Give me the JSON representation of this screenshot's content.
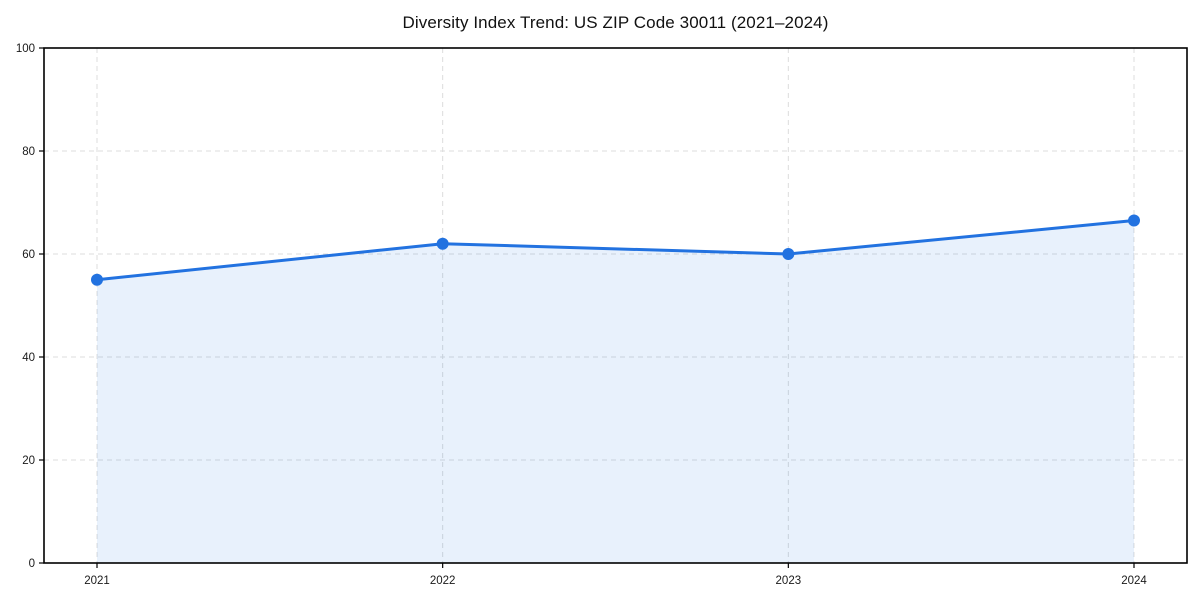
{
  "chart_data": {
    "type": "area",
    "title": "Diversity Index Trend: US ZIP Code 30011 (2021–2024)",
    "categories": [
      "2021",
      "2022",
      "2023",
      "2024"
    ],
    "values": [
      55,
      62,
      60,
      66.5
    ],
    "ylim": [
      0,
      100
    ],
    "yticks": [
      0,
      20,
      40,
      60,
      80,
      100
    ],
    "grid": true,
    "legend": "none",
    "colors": {
      "line": "#2272e0",
      "marker": "#2272e0",
      "area_fill": "rgba(34,114,224,0.10)",
      "gridline": "#dcdcdc",
      "axis": "#000000",
      "tick_label": "#1a1a1a",
      "title": "#111111"
    }
  }
}
